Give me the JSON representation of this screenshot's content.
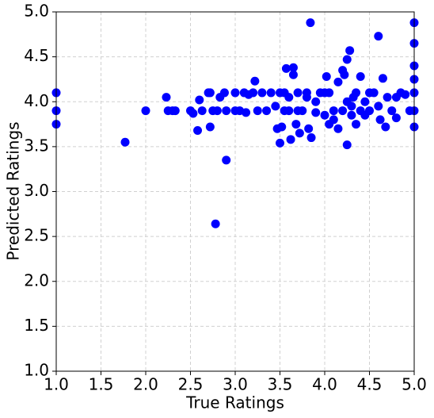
{
  "chart_data": {
    "type": "scatter",
    "xlabel": "True Ratings",
    "ylabel": "Predicted Ratings",
    "color": "#0000ff",
    "grid": true,
    "xlim": [
      1,
      5
    ],
    "ylim": [
      1,
      5
    ],
    "xticks": [
      {
        "value": 1,
        "label": "1.0"
      },
      {
        "value": 1.5,
        "label": "1.5"
      },
      {
        "value": 2,
        "label": "2.0"
      },
      {
        "value": 2.5,
        "label": "2.5"
      },
      {
        "value": 3,
        "label": "3.0"
      },
      {
        "value": 3.5,
        "label": "3.5"
      },
      {
        "value": 4,
        "label": "4.0"
      },
      {
        "value": 4.5,
        "label": "4.5"
      },
      {
        "value": 5,
        "label": "5.0"
      }
    ],
    "yticks": [
      {
        "value": 1,
        "label": "1.0"
      },
      {
        "value": 1.5,
        "label": "1.5"
      },
      {
        "value": 2,
        "label": "2.0"
      },
      {
        "value": 2.5,
        "label": "2.5"
      },
      {
        "value": 3,
        "label": "3.0"
      },
      {
        "value": 3.5,
        "label": "3.5"
      },
      {
        "value": 4,
        "label": "4.0"
      },
      {
        "value": 4.5,
        "label": "4.5"
      },
      {
        "value": 5,
        "label": "5.0"
      }
    ],
    "x": [
      1.0,
      1.0,
      1.0,
      1.77,
      2.0,
      2.23,
      2.25,
      2.3,
      2.33,
      2.5,
      2.53,
      2.58,
      2.6,
      2.63,
      2.7,
      2.72,
      2.72,
      2.75,
      2.78,
      2.8,
      2.83,
      2.88,
      2.9,
      2.9,
      3.0,
      3.0,
      3.05,
      3.1,
      3.12,
      3.15,
      3.2,
      3.22,
      3.25,
      3.3,
      3.35,
      3.4,
      3.45,
      3.47,
      3.5,
      3.5,
      3.52,
      3.55,
      3.57,
      3.6,
      3.62,
      3.65,
      3.65,
      3.68,
      3.7,
      3.72,
      3.75,
      3.8,
      3.82,
      3.84,
      3.85,
      3.9,
      3.95,
      4.0,
      4.02,
      4.05,
      4.1,
      4.15,
      4.2,
      4.22,
      4.25,
      4.25,
      4.28,
      4.3,
      4.32,
      4.35,
      4.4,
      4.45,
      4.5,
      4.55,
      4.6,
      4.62,
      4.65,
      4.68,
      4.7,
      4.75,
      4.8,
      4.85,
      4.9,
      4.95,
      5.0,
      5.0,
      5.0,
      5.0,
      5.0,
      5.0,
      5.0,
      4.1,
      4.2,
      4.3,
      4.4,
      4.05,
      4.15,
      4.25,
      4.35,
      4.45,
      3.9,
      3.6,
      3.7,
      3.8,
      4.0,
      4.5,
      4.6,
      3.55,
      4.8
    ],
    "values": [
      4.1,
      3.9,
      3.75,
      3.55,
      3.9,
      4.05,
      3.9,
      3.9,
      3.9,
      3.9,
      3.87,
      3.68,
      4.02,
      3.9,
      4.1,
      4.1,
      3.72,
      3.9,
      2.64,
      3.9,
      4.05,
      4.1,
      3.35,
      3.9,
      4.1,
      3.9,
      3.9,
      4.1,
      3.88,
      4.08,
      4.1,
      4.23,
      3.9,
      4.1,
      3.9,
      4.1,
      3.95,
      3.7,
      3.54,
      4.1,
      3.72,
      3.9,
      4.37,
      4.05,
      3.58,
      4.38,
      4.3,
      3.75,
      4.1,
      3.65,
      3.9,
      4.05,
      3.7,
      4.88,
      3.6,
      4.0,
      4.1,
      3.85,
      4.28,
      4.1,
      3.8,
      4.22,
      4.35,
      4.3,
      3.52,
      4.47,
      4.57,
      3.95,
      4.05,
      3.75,
      4.28,
      4.0,
      3.9,
      4.1,
      4.73,
      3.8,
      4.26,
      3.72,
      4.05,
      3.9,
      3.82,
      4.1,
      4.08,
      3.9,
      4.88,
      4.65,
      4.4,
      4.25,
      4.1,
      3.9,
      3.72,
      3.9,
      3.9,
      3.85,
      3.9,
      3.75,
      3.7,
      4.0,
      4.1,
      3.85,
      3.88,
      3.9,
      3.9,
      4.1,
      4.1,
      4.1,
      3.95,
      4.1,
      4.05
    ]
  }
}
